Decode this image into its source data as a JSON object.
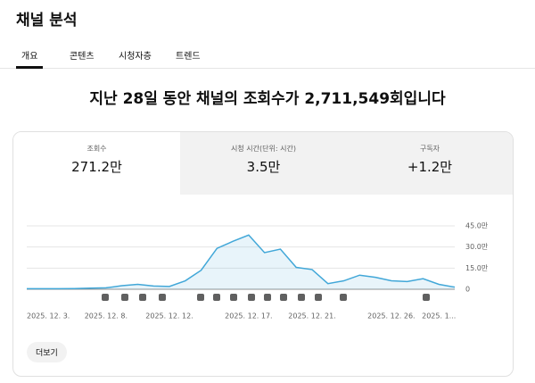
{
  "header": {
    "title": "채널 분석"
  },
  "tabs": [
    "개요",
    "콘텐츠",
    "시청자층",
    "트렌드"
  ],
  "headline": "지난 28일 동안 채널의 조회수가 2,711,549회입니다",
  "metrics": [
    {
      "label": "조회수",
      "value": "271.2만"
    },
    {
      "label": "시청 시간(단위: 시간)",
      "value": "3.5만"
    },
    {
      "label": "구독자",
      "value": "+1.2만"
    }
  ],
  "chart_data": {
    "type": "line",
    "categories": [
      "2025. 12. 3.",
      null,
      null,
      null,
      null,
      "2025. 12. 8.",
      null,
      null,
      null,
      "2025. 12. 12.",
      null,
      null,
      null,
      null,
      "2025. 12. 17.",
      null,
      null,
      null,
      "2025. 12. 21.",
      null,
      null,
      null,
      null,
      "2025. 12. 26.",
      null,
      null,
      "2025. 1...",
      null
    ],
    "series": [
      {
        "name": "조회수",
        "color": "#41a7d8",
        "values": [
          0.4,
          0.4,
          0.4,
          0.5,
          0.8,
          1,
          2.5,
          3.5,
          2.3,
          2,
          6,
          13.5,
          29,
          34,
          38.5,
          26,
          28.5,
          15.5,
          14,
          4,
          6,
          10,
          8.5,
          6,
          5.5,
          7.5,
          3.5,
          1.5
        ]
      }
    ],
    "ylim": [
      0,
      45
    ],
    "yticks": [
      0,
      {
        "value": 15,
        "label": "15.0만"
      },
      {
        "value": 30,
        "label": "30.0만"
      },
      {
        "value": 45,
        "label": "45.0만"
      }
    ],
    "grid": true
  },
  "button": "더보기"
}
